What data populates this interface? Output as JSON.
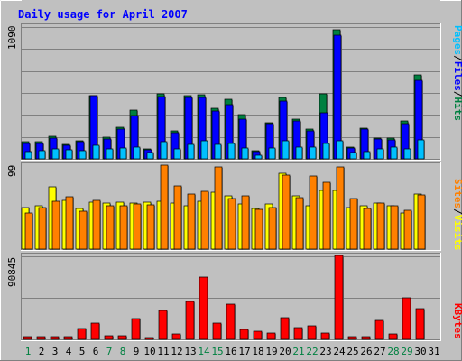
{
  "colors": {
    "background": "#C0C0C0",
    "panel": "#C0C0C0",
    "title": "#0000FF",
    "grid": "#808080",
    "hits": "#008040",
    "files": "#0000FF",
    "pages": "#00C0FF",
    "visits": "#FFFF00",
    "sites": "#FF8000",
    "kbytes": "#FF0000",
    "weekend_label": "#008040",
    "weekday_label": "#000000"
  },
  "chart_data": [
    {
      "type": "bar",
      "title": "Daily usage for April 2007",
      "categories": [
        "1",
        "2",
        "3",
        "4",
        "5",
        "6",
        "7",
        "8",
        "9",
        "10",
        "11",
        "12",
        "13",
        "14",
        "15",
        "16",
        "17",
        "18",
        "19",
        "20",
        "21",
        "22",
        "23",
        "24",
        "25",
        "26",
        "27",
        "28",
        "29",
        "30",
        "31"
      ],
      "weekend_days": [
        "1",
        "7",
        "8",
        "14",
        "15",
        "21",
        "22",
        "28",
        "29"
      ],
      "ymax_label": "1090",
      "ylim": [
        0,
        1090
      ],
      "legend": [
        "Pages",
        "Files",
        "Hits"
      ],
      "series": [
        {
          "name": "Hits",
          "values": [
            140,
            140,
            190,
            120,
            150,
            525,
            180,
            265,
            400,
            80,
            535,
            230,
            520,
            530,
            420,
            490,
            365,
            65,
            300,
            505,
            330,
            250,
            540,
            1070,
            95,
            255,
            175,
            170,
            310,
            695,
            0
          ]
        },
        {
          "name": "Files",
          "values": [
            130,
            125,
            175,
            110,
            140,
            525,
            165,
            250,
            355,
            75,
            515,
            215,
            505,
            505,
            395,
            450,
            330,
            60,
            290,
            475,
            310,
            230,
            380,
            1025,
            90,
            245,
            165,
            155,
            290,
            650,
            0
          ]
        },
        {
          "name": "Pages",
          "values": [
            60,
            70,
            80,
            75,
            65,
            110,
            80,
            90,
            100,
            50,
            140,
            80,
            120,
            150,
            120,
            130,
            90,
            30,
            90,
            150,
            100,
            100,
            130,
            150,
            55,
            60,
            80,
            100,
            80,
            155,
            0
          ]
        }
      ]
    },
    {
      "type": "bar",
      "categories": [
        "1",
        "2",
        "3",
        "4",
        "5",
        "6",
        "7",
        "8",
        "9",
        "10",
        "11",
        "12",
        "13",
        "14",
        "15",
        "16",
        "17",
        "18",
        "19",
        "20",
        "21",
        "22",
        "23",
        "24",
        "25",
        "26",
        "27",
        "28",
        "29",
        "30",
        "31"
      ],
      "ymax_label": "99",
      "ylim": [
        0,
        99
      ],
      "legend": [
        "Sites",
        "Visits"
      ],
      "series": [
        {
          "name": "Visits",
          "values": [
            50,
            52,
            74,
            58,
            48,
            56,
            55,
            56,
            55,
            56,
            57,
            55,
            52,
            57,
            68,
            64,
            54,
            48,
            54,
            90,
            63,
            52,
            70,
            70,
            50,
            52,
            55,
            52,
            43,
            66,
            0
          ]
        },
        {
          "name": "Sites",
          "values": [
            43,
            50,
            57,
            62,
            45,
            58,
            52,
            52,
            54,
            53,
            100,
            75,
            66,
            69,
            98,
            60,
            63,
            47,
            50,
            88,
            61,
            87,
            80,
            98,
            60,
            48,
            55,
            52,
            46,
            65,
            0
          ]
        }
      ]
    },
    {
      "type": "bar",
      "categories": [
        "1",
        "2",
        "3",
        "4",
        "5",
        "6",
        "7",
        "8",
        "9",
        "10",
        "11",
        "12",
        "13",
        "14",
        "15",
        "16",
        "17",
        "18",
        "19",
        "20",
        "21",
        "22",
        "23",
        "24",
        "25",
        "26",
        "27",
        "28",
        "29",
        "30",
        "31"
      ],
      "ymax_label": "90845",
      "ylim": [
        0,
        90845
      ],
      "legend": [
        "KBytes"
      ],
      "series": [
        {
          "name": "KBytes",
          "values": [
            2600,
            2700,
            2600,
            2700,
            11500,
            18200,
            3800,
            3800,
            23000,
            1700,
            31700,
            5500,
            41000,
            68000,
            17500,
            39000,
            10500,
            9000,
            6800,
            23500,
            13200,
            15000,
            7400,
            92000,
            2700,
            3400,
            20400,
            5800,
            45000,
            34000,
            0
          ]
        }
      ]
    }
  ]
}
